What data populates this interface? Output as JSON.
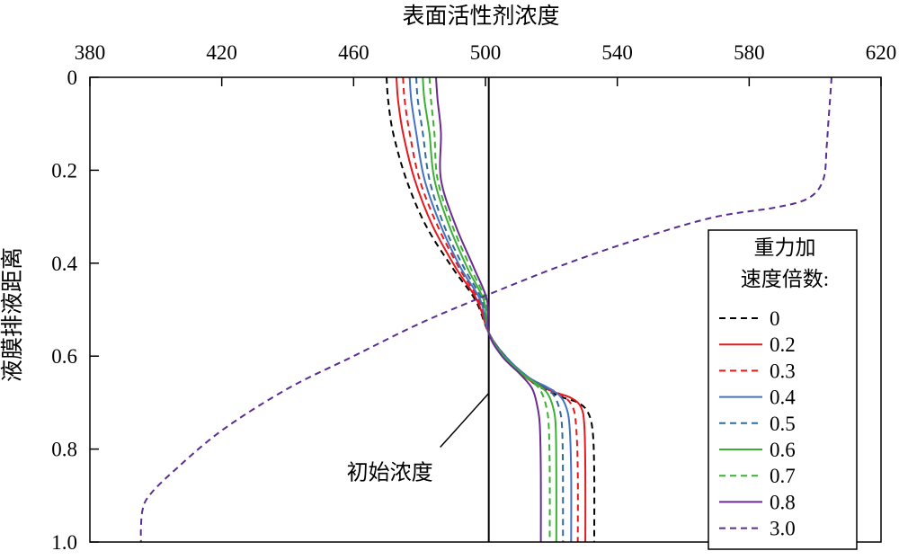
{
  "chart_data": {
    "type": "line",
    "xlabel": "表面活性剂浓度",
    "ylabel": "液膜排液距离",
    "x_axis_position": "top",
    "y_inverted": true,
    "xlim": [
      380,
      620
    ],
    "ylim": [
      0,
      1.0
    ],
    "x_ticks": [
      380,
      420,
      460,
      500,
      540,
      580,
      620
    ],
    "y_ticks": [
      0,
      0.2,
      0.4,
      0.6,
      0.8,
      1.0
    ],
    "y_tick_labels": [
      "0",
      "0.2",
      "0.4",
      "0.6",
      "0.8",
      "1.0"
    ],
    "grid": false,
    "legend": {
      "title_line1": "重力加",
      "title_line2": "速度倍数:",
      "placement": "right"
    },
    "reference_line": {
      "x": 501,
      "label": "初始浓度"
    },
    "series": [
      {
        "name": "0",
        "color": "#000000",
        "dash": true,
        "x": [
          470,
          470.5,
          472,
          476,
          482,
          490,
          497,
          501,
          506,
          514,
          522,
          528,
          531,
          532.5,
          533,
          533
        ],
        "y": [
          0,
          0.05,
          0.12,
          0.22,
          0.32,
          0.41,
          0.48,
          0.55,
          0.6,
          0.655,
          0.685,
          0.7,
          0.72,
          0.76,
          0.85,
          1.0
        ]
      },
      {
        "name": "0.2",
        "color": "#e41a1c",
        "dash": false,
        "x": [
          473,
          473.5,
          475,
          478.5,
          484,
          491,
          497.5,
          501,
          506,
          513,
          520,
          526,
          529,
          530,
          530.3,
          530.3
        ],
        "y": [
          0,
          0.05,
          0.12,
          0.22,
          0.32,
          0.41,
          0.48,
          0.55,
          0.6,
          0.65,
          0.675,
          0.69,
          0.71,
          0.75,
          0.85,
          1.0
        ]
      },
      {
        "name": "0.3",
        "color": "#e41a1c",
        "dash": true,
        "x": [
          475,
          475.5,
          477,
          480,
          485.5,
          492,
          498,
          501,
          506,
          513,
          520,
          524,
          526.5,
          527.5,
          528,
          528
        ],
        "y": [
          0,
          0.05,
          0.12,
          0.22,
          0.32,
          0.41,
          0.48,
          0.55,
          0.6,
          0.648,
          0.672,
          0.688,
          0.71,
          0.75,
          0.85,
          1.0
        ]
      },
      {
        "name": "0.4",
        "color": "#4472c4",
        "dash": false,
        "x": [
          477,
          477.5,
          479,
          481.5,
          486.5,
          492.5,
          498.5,
          501,
          506,
          513,
          519,
          522.5,
          524.5,
          525.5,
          526,
          526
        ],
        "y": [
          0,
          0.05,
          0.12,
          0.22,
          0.32,
          0.41,
          0.48,
          0.55,
          0.6,
          0.645,
          0.668,
          0.685,
          0.71,
          0.75,
          0.85,
          1.0
        ]
      },
      {
        "name": "0.5",
        "color": "#2e6c9e",
        "dash": true,
        "x": [
          479,
          479.5,
          481,
          483,
          487.5,
          493.5,
          499,
          501,
          506,
          512,
          517.5,
          520.5,
          522.3,
          523.2,
          523.5,
          523.5
        ],
        "y": [
          0,
          0.05,
          0.12,
          0.22,
          0.32,
          0.41,
          0.48,
          0.55,
          0.6,
          0.643,
          0.665,
          0.682,
          0.71,
          0.75,
          0.85,
          1.0
        ]
      },
      {
        "name": "0.6",
        "color": "#3cb034",
        "dash": false,
        "x": [
          481,
          481.5,
          483,
          484.5,
          489,
          494.5,
          499.5,
          501,
          505.5,
          511.5,
          516,
          518.8,
          520.5,
          521.3,
          521.5,
          521.5
        ],
        "y": [
          0,
          0.05,
          0.12,
          0.22,
          0.32,
          0.41,
          0.48,
          0.55,
          0.6,
          0.64,
          0.662,
          0.68,
          0.71,
          0.75,
          0.85,
          1.0
        ]
      },
      {
        "name": "0.7",
        "color": "#3cb034",
        "dash": true,
        "x": [
          483,
          483.5,
          484.5,
          485.5,
          490,
          495.5,
          500,
          501,
          505.5,
          511,
          515,
          517,
          518.5,
          519.2,
          519.5,
          519.5
        ],
        "y": [
          0,
          0.05,
          0.12,
          0.22,
          0.32,
          0.41,
          0.48,
          0.55,
          0.6,
          0.638,
          0.66,
          0.678,
          0.71,
          0.75,
          0.85,
          1.0
        ]
      },
      {
        "name": "0.8",
        "color": "#6a2c91",
        "dash": false,
        "x": [
          485,
          485.5,
          486.5,
          486.5,
          491,
          496.5,
          500.5,
          501,
          505,
          510,
          513,
          514.5,
          515.8,
          516.5,
          516.8,
          516.8
        ],
        "y": [
          0,
          0.05,
          0.12,
          0.22,
          0.32,
          0.41,
          0.48,
          0.55,
          0.6,
          0.635,
          0.658,
          0.675,
          0.71,
          0.75,
          0.85,
          1.0
        ]
      },
      {
        "name": "3.0",
        "color": "#5a2d91",
        "dash": true,
        "x": [
          605,
          604.5,
          604,
          603.5,
          602.5,
          598,
          588,
          570,
          550,
          525,
          500,
          480,
          460,
          440,
          420,
          405,
          398,
          396,
          395.5,
          395.5
        ],
        "y": [
          0,
          0.05,
          0.1,
          0.15,
          0.22,
          0.26,
          0.28,
          0.3,
          0.34,
          0.4,
          0.47,
          0.53,
          0.6,
          0.67,
          0.76,
          0.85,
          0.9,
          0.93,
          0.97,
          1.0
        ]
      }
    ]
  }
}
